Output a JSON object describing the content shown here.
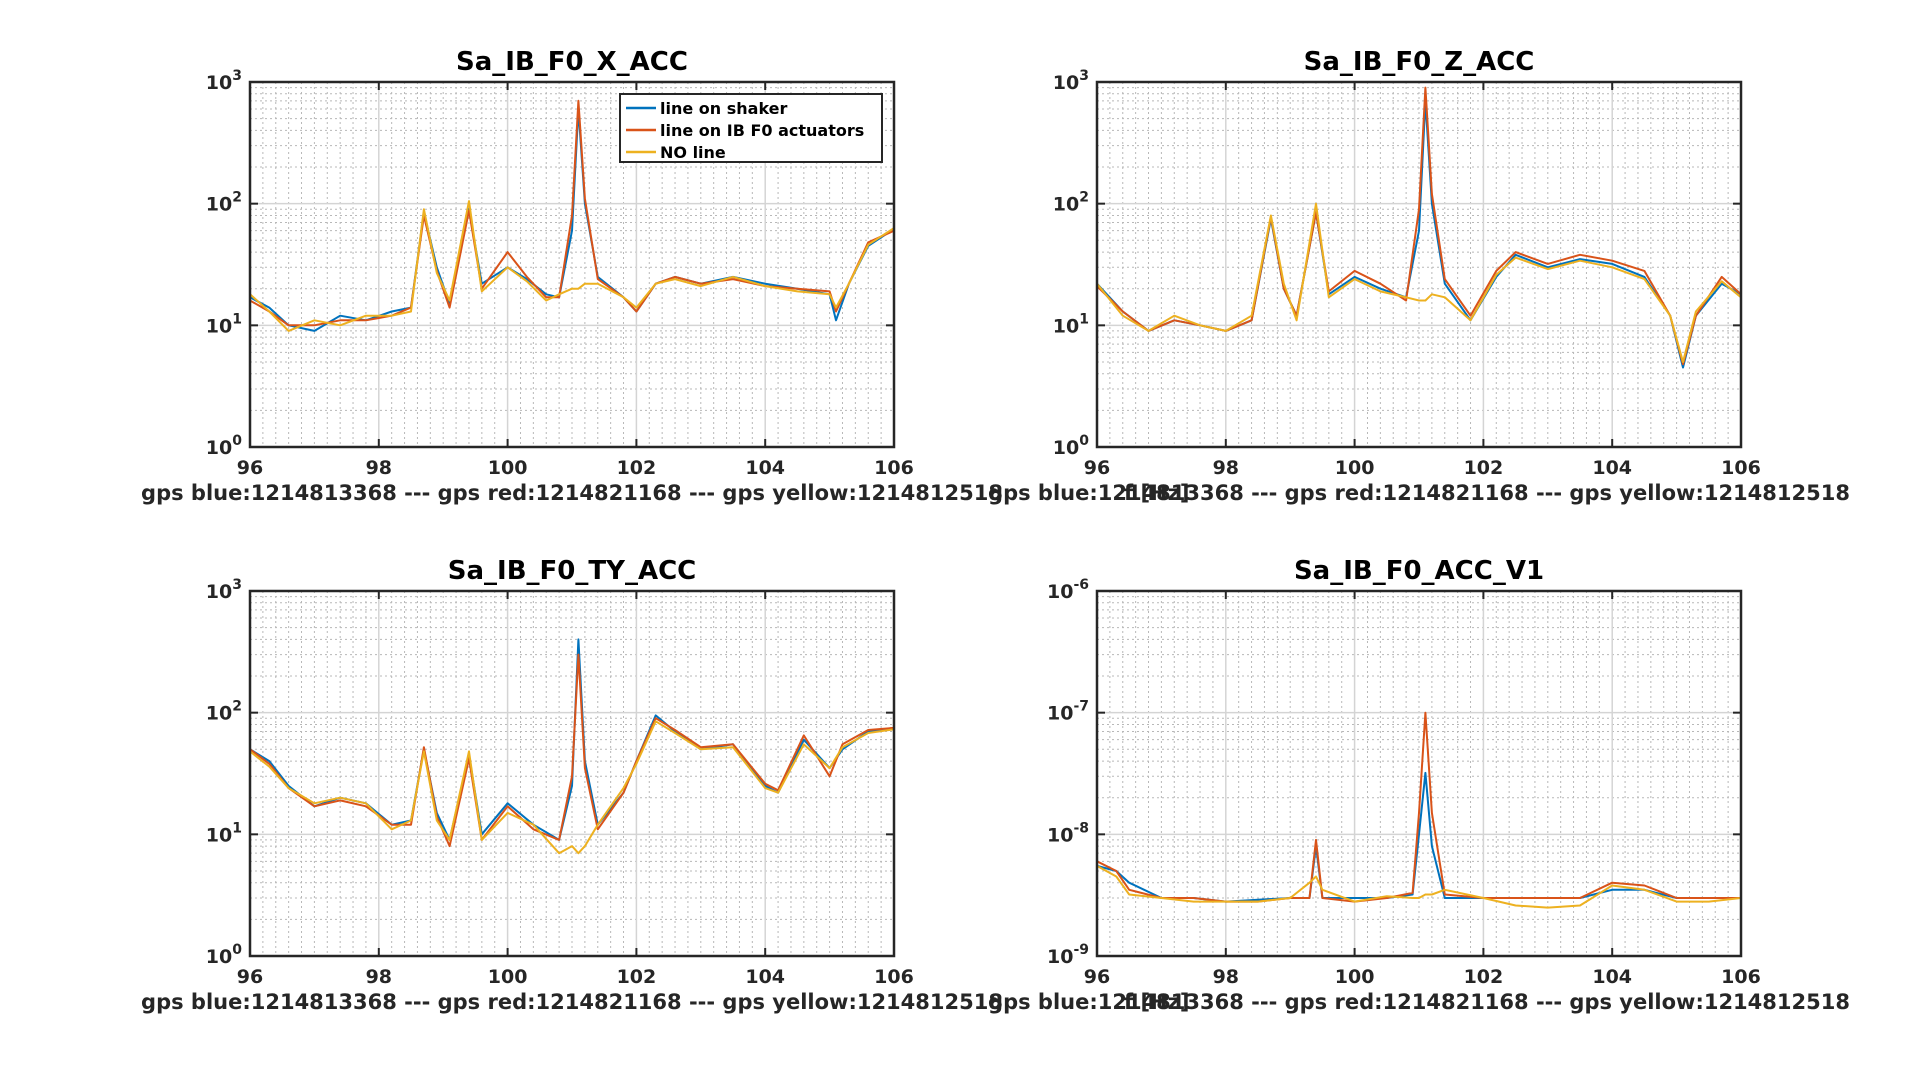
{
  "figure": {
    "x_ticks": [
      "96",
      "98",
      "100",
      "102",
      "104",
      "106"
    ],
    "series_colors": {
      "blue": "#0072BD",
      "red": "#D95319",
      "yellow": "#EDB120"
    },
    "legend": [
      "line on shaker",
      "line on IB F0 actuators",
      "NO line"
    ]
  },
  "chart_data": [
    {
      "type": "line",
      "title": "Sa_IB_F0_X_ACC",
      "xlabel": "gps blue:1214813368 --- gps red:1214821168 --- gps yellow:1214812518",
      "xlabel_right": "f [Hz]",
      "xlim": [
        96,
        106
      ],
      "yscale": "log",
      "ylim": [
        1,
        1000
      ],
      "y_ticks": [
        {
          "b": "10",
          "e": "0"
        },
        {
          "b": "10",
          "e": "1"
        },
        {
          "b": "10",
          "e": "2"
        },
        {
          "b": "10",
          "e": "3"
        }
      ],
      "grid": true,
      "legend_position": "top-right",
      "series": [
        {
          "name": "line on shaker",
          "color": "#0072BD",
          "x": [
            96,
            96.3,
            96.6,
            97,
            97.4,
            97.8,
            98.2,
            98.5,
            98.7,
            98.9,
            99.1,
            99.4,
            99.6,
            100,
            100.3,
            100.6,
            100.8,
            101,
            101.1,
            101.2,
            101.4,
            101.8,
            102,
            102.3,
            102.6,
            103,
            103.5,
            104,
            104.5,
            105,
            105.1,
            105.3,
            105.6,
            106
          ],
          "y": [
            17,
            14,
            10,
            9,
            12,
            11,
            13,
            14,
            85,
            30,
            15,
            90,
            22,
            30,
            24,
            18,
            17,
            60,
            600,
            100,
            25,
            17,
            13,
            22,
            25,
            22,
            25,
            22,
            20,
            18,
            11,
            22,
            45,
            62
          ]
        },
        {
          "name": "line on IB F0 actuators",
          "color": "#D95319",
          "x": [
            96,
            96.3,
            96.6,
            97,
            97.4,
            97.8,
            98.2,
            98.5,
            98.7,
            98.9,
            99.1,
            99.4,
            99.6,
            100,
            100.3,
            100.6,
            100.8,
            101,
            101.1,
            101.2,
            101.4,
            101.8,
            102,
            102.3,
            102.6,
            103,
            103.5,
            104,
            104.5,
            105,
            105.1,
            105.3,
            105.6,
            106
          ],
          "y": [
            16,
            13,
            10,
            10,
            11,
            11,
            12,
            14,
            80,
            28,
            14,
            88,
            20,
            40,
            25,
            17,
            17,
            80,
            700,
            110,
            24,
            17,
            13,
            22,
            25,
            22,
            24,
            21,
            20,
            19,
            13,
            22,
            48,
            60
          ]
        },
        {
          "name": "NO line",
          "color": "#EDB120",
          "x": [
            96,
            96.3,
            96.6,
            97,
            97.4,
            97.8,
            98.2,
            98.5,
            98.7,
            98.9,
            99.1,
            99.4,
            99.6,
            100,
            100.3,
            100.6,
            100.8,
            101,
            101.1,
            101.2,
            101.4,
            101.8,
            102,
            102.3,
            102.6,
            103,
            103.5,
            104,
            104.5,
            105,
            105.1,
            105.3,
            105.6,
            106
          ],
          "y": [
            18,
            13,
            9,
            11,
            10,
            12,
            12,
            13,
            90,
            27,
            16,
            105,
            19,
            30,
            23,
            16,
            18,
            20,
            20,
            22,
            22,
            17,
            14,
            22,
            24,
            21,
            25,
            21,
            19,
            18,
            14,
            22,
            46,
            63
          ]
        }
      ]
    },
    {
      "type": "line",
      "title": "Sa_IB_F0_Z_ACC",
      "xlabel": "gps blue:1214813368 --- gps red:1214821168 --- gps yellow:1214812518",
      "xlabel_right": "f [Hz]",
      "xlim": [
        96,
        106
      ],
      "yscale": "log",
      "ylim": [
        1,
        1000
      ],
      "y_ticks": [
        {
          "b": "10",
          "e": "0"
        },
        {
          "b": "10",
          "e": "1"
        },
        {
          "b": "10",
          "e": "2"
        },
        {
          "b": "10",
          "e": "3"
        }
      ],
      "grid": true,
      "series": [
        {
          "name": "line on shaker",
          "color": "#0072BD",
          "x": [
            96,
            96.4,
            96.8,
            97.2,
            97.6,
            98,
            98.4,
            98.7,
            98.9,
            99.1,
            99.4,
            99.6,
            100,
            100.4,
            100.8,
            101,
            101.1,
            101.2,
            101.4,
            101.8,
            102.2,
            102.5,
            103,
            103.5,
            104,
            104.5,
            104.9,
            105.1,
            105.3,
            105.7,
            106
          ],
          "y": [
            22,
            13,
            9,
            11,
            10,
            9,
            11,
            75,
            20,
            12,
            85,
            18,
            25,
            20,
            17,
            60,
            700,
            100,
            22,
            11,
            25,
            38,
            30,
            35,
            32,
            25,
            12,
            4.5,
            12,
            22,
            18
          ]
        },
        {
          "name": "line on IB F0 actuators",
          "color": "#D95319",
          "x": [
            96,
            96.4,
            96.8,
            97.2,
            97.6,
            98,
            98.4,
            98.7,
            98.9,
            99.1,
            99.4,
            99.6,
            100,
            100.4,
            100.8,
            101,
            101.1,
            101.2,
            101.4,
            101.8,
            102.2,
            102.5,
            103,
            103.5,
            104,
            104.5,
            104.9,
            105.1,
            105.3,
            105.7,
            106
          ],
          "y": [
            21,
            13,
            9,
            11,
            10,
            9,
            11,
            78,
            20,
            12,
            85,
            19,
            28,
            22,
            16,
            90,
            900,
            120,
            24,
            12,
            28,
            40,
            32,
            38,
            34,
            28,
            12,
            4.8,
            12,
            25,
            18
          ]
        },
        {
          "name": "NO line",
          "color": "#EDB120",
          "x": [
            96,
            96.4,
            96.8,
            97.2,
            97.6,
            98,
            98.4,
            98.7,
            98.9,
            99.1,
            99.4,
            99.6,
            100,
            100.4,
            100.8,
            101,
            101.1,
            101.2,
            101.4,
            101.8,
            102.2,
            102.5,
            103,
            103.5,
            104,
            104.5,
            104.9,
            105.1,
            105.3,
            105.7,
            106
          ],
          "y": [
            22,
            12,
            9,
            12,
            10,
            9,
            12,
            80,
            22,
            11,
            100,
            17,
            24,
            19,
            17,
            16,
            16,
            18,
            17,
            11,
            26,
            36,
            29,
            34,
            30,
            24,
            12,
            5,
            13,
            23,
            17
          ]
        }
      ]
    },
    {
      "type": "line",
      "title": "Sa_IB_F0_TY_ACC",
      "xlabel": "gps blue:1214813368 --- gps red:1214821168 --- gps yellow:1214812518",
      "xlabel_right": "f [Hz]",
      "xlim": [
        96,
        106
      ],
      "yscale": "log",
      "ylim": [
        1,
        1000
      ],
      "y_ticks": [
        {
          "b": "10",
          "e": "0"
        },
        {
          "b": "10",
          "e": "1"
        },
        {
          "b": "10",
          "e": "2"
        },
        {
          "b": "10",
          "e": "3"
        }
      ],
      "grid": true,
      "series": [
        {
          "name": "line on shaker",
          "color": "#0072BD",
          "x": [
            96,
            96.3,
            96.6,
            97,
            97.4,
            97.8,
            98.2,
            98.5,
            98.7,
            98.9,
            99.1,
            99.4,
            99.6,
            100,
            100.4,
            100.8,
            101,
            101.1,
            101.2,
            101.4,
            101.8,
            102,
            102.3,
            102.6,
            103,
            103.5,
            104,
            104.2,
            104.6,
            105,
            105.2,
            105.6,
            106
          ],
          "y": [
            50,
            40,
            25,
            17,
            20,
            18,
            12,
            13,
            50,
            15,
            9,
            45,
            10,
            18,
            12,
            9,
            25,
            400,
            40,
            12,
            22,
            40,
            95,
            70,
            50,
            55,
            25,
            22,
            60,
            35,
            50,
            70,
            75
          ]
        },
        {
          "name": "line on IB F0 actuators",
          "color": "#D95319",
          "x": [
            96,
            96.3,
            96.6,
            97,
            97.4,
            97.8,
            98.2,
            98.5,
            98.7,
            98.9,
            99.1,
            99.4,
            99.6,
            100,
            100.4,
            100.8,
            101,
            101.1,
            101.2,
            101.4,
            101.8,
            102,
            102.3,
            102.6,
            103,
            103.5,
            104,
            104.2,
            104.6,
            105,
            105.2,
            105.6,
            106
          ],
          "y": [
            50,
            38,
            24,
            17,
            19,
            17,
            12,
            12,
            52,
            14,
            8,
            42,
            9,
            17,
            11,
            9,
            30,
            300,
            35,
            11,
            22,
            40,
            90,
            72,
            52,
            55,
            26,
            23,
            65,
            30,
            55,
            72,
            75
          ]
        },
        {
          "name": "NO line",
          "color": "#EDB120",
          "x": [
            96,
            96.3,
            96.6,
            97,
            97.4,
            97.8,
            98.2,
            98.5,
            98.7,
            98.9,
            99.1,
            99.4,
            99.6,
            100,
            100.4,
            100.8,
            101,
            101.1,
            101.2,
            101.4,
            101.8,
            102,
            102.3,
            102.6,
            103,
            103.5,
            104,
            104.2,
            104.6,
            105,
            105.2,
            105.6,
            106
          ],
          "y": [
            48,
            36,
            24,
            18,
            20,
            18,
            11,
            13,
            48,
            13,
            9,
            48,
            9,
            15,
            12,
            7,
            8,
            7,
            8,
            12,
            24,
            38,
            85,
            68,
            50,
            52,
            24,
            22,
            55,
            35,
            52,
            68,
            73
          ]
        }
      ]
    },
    {
      "type": "line",
      "title": "Sa_IB_F0_ACC_V1",
      "xlabel": "gps blue:1214813368 --- gps red:1214821168 --- gps yellow:1214812518",
      "xlabel_right": "f [Hz]",
      "xlim": [
        96,
        106
      ],
      "yscale": "log",
      "ylim": [
        1e-09,
        1e-06
      ],
      "y_ticks": [
        {
          "b": "10",
          "e": "-9"
        },
        {
          "b": "10",
          "e": "-8"
        },
        {
          "b": "10",
          "e": "-7"
        },
        {
          "b": "10",
          "e": "-6"
        }
      ],
      "grid": true,
      "series": [
        {
          "name": "line on shaker",
          "color": "#0072BD",
          "x": [
            96,
            96.3,
            96.5,
            97,
            97.5,
            98,
            98.5,
            99,
            99.3,
            99.4,
            99.5,
            100,
            100.5,
            100.9,
            101,
            101.1,
            101.2,
            101.4,
            102,
            102.5,
            103,
            103.5,
            104,
            104.5,
            105,
            105.5,
            106
          ],
          "y": [
            5.5e-09,
            5e-09,
            4e-09,
            3e-09,
            3e-09,
            2.8e-09,
            2.9e-09,
            3e-09,
            3e-09,
            8e-09,
            3e-09,
            3e-09,
            3e-09,
            3.2e-09,
            1e-08,
            3.2e-08,
            8e-09,
            3e-09,
            3e-09,
            3e-09,
            3e-09,
            3e-09,
            3.5e-09,
            3.5e-09,
            3e-09,
            3e-09,
            3e-09
          ]
        },
        {
          "name": "line on IB F0 actuators",
          "color": "#D95319",
          "x": [
            96,
            96.3,
            96.5,
            97,
            97.5,
            98,
            98.5,
            99,
            99.3,
            99.4,
            99.5,
            100,
            100.5,
            100.9,
            101,
            101.1,
            101.2,
            101.4,
            102,
            102.5,
            103,
            103.5,
            104,
            104.5,
            105,
            105.5,
            106
          ],
          "y": [
            6e-09,
            5e-09,
            3.5e-09,
            3e-09,
            3e-09,
            2.8e-09,
            2.8e-09,
            3e-09,
            3e-09,
            9e-09,
            3e-09,
            2.8e-09,
            3e-09,
            3.3e-09,
            1.5e-08,
            1e-07,
            1.5e-08,
            3.2e-09,
            3e-09,
            3e-09,
            3e-09,
            3e-09,
            4e-09,
            3.8e-09,
            3e-09,
            3e-09,
            3e-09
          ]
        },
        {
          "name": "NO line",
          "color": "#EDB120",
          "x": [
            96,
            96.3,
            96.5,
            97,
            97.5,
            98,
            98.5,
            99,
            99.3,
            99.4,
            99.5,
            100,
            100.5,
            100.9,
            101,
            101.1,
            101.2,
            101.4,
            102,
            102.5,
            103,
            103.5,
            104,
            104.5,
            105,
            105.5,
            106
          ],
          "y": [
            5.5e-09,
            4.5e-09,
            3.2e-09,
            3e-09,
            2.8e-09,
            2.8e-09,
            2.8e-09,
            3e-09,
            4e-09,
            4.5e-09,
            3.5e-09,
            2.8e-09,
            3.1e-09,
            3e-09,
            3e-09,
            3.2e-09,
            3.2e-09,
            3.5e-09,
            3e-09,
            2.6e-09,
            2.5e-09,
            2.6e-09,
            3.8e-09,
            3.5e-09,
            2.8e-09,
            2.8e-09,
            3e-09
          ]
        }
      ]
    }
  ]
}
